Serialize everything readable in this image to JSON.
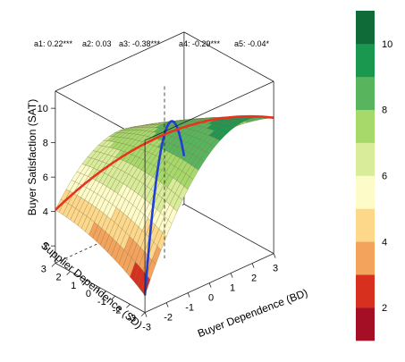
{
  "coefficients": [
    {
      "label": "a1:",
      "value": "0.22***"
    },
    {
      "label": "a2:",
      "value": "0.03"
    },
    {
      "label": "a3:",
      "value": "-0.38***"
    },
    {
      "label": "a4:",
      "value": "-0.29***"
    },
    {
      "label": "a5:",
      "value": "-0.04*"
    }
  ],
  "chart_data": {
    "type": "surface",
    "title": "",
    "xlabel": "Buyer Dependence (BD)",
    "ylabel": "Supplier Dependence (SD)",
    "zlabel": "Buyer Satisfaction (SAT)",
    "x_ticks": [
      "-3",
      "-2",
      "-1",
      "0",
      "1",
      "2",
      "3"
    ],
    "y_ticks": [
      "-3",
      "-2",
      "-1",
      "0",
      "1",
      "2",
      "3"
    ],
    "z_ticks": [
      "2",
      "4",
      "6",
      "8",
      "10"
    ],
    "xlim": [
      -3,
      3
    ],
    "ylim": [
      -3,
      3
    ],
    "zlim": [
      1,
      11
    ],
    "lines": [
      {
        "name": "congruence line (SD = BD)",
        "color": "#1f3fd6"
      },
      {
        "name": "incongruence line (SD = -BD)",
        "color": "#e8341c"
      }
    ],
    "colorbar": {
      "ticks": [
        "2",
        "4",
        "6",
        "8",
        "10"
      ],
      "range": [
        1,
        11
      ],
      "colors": [
        "#a50f26",
        "#d7301f",
        "#f4a35d",
        "#fdd88b",
        "#fdfcc8",
        "#d8ec9a",
        "#a6d96a",
        "#58b55e",
        "#1a9850",
        "#0f6b38"
      ]
    }
  }
}
